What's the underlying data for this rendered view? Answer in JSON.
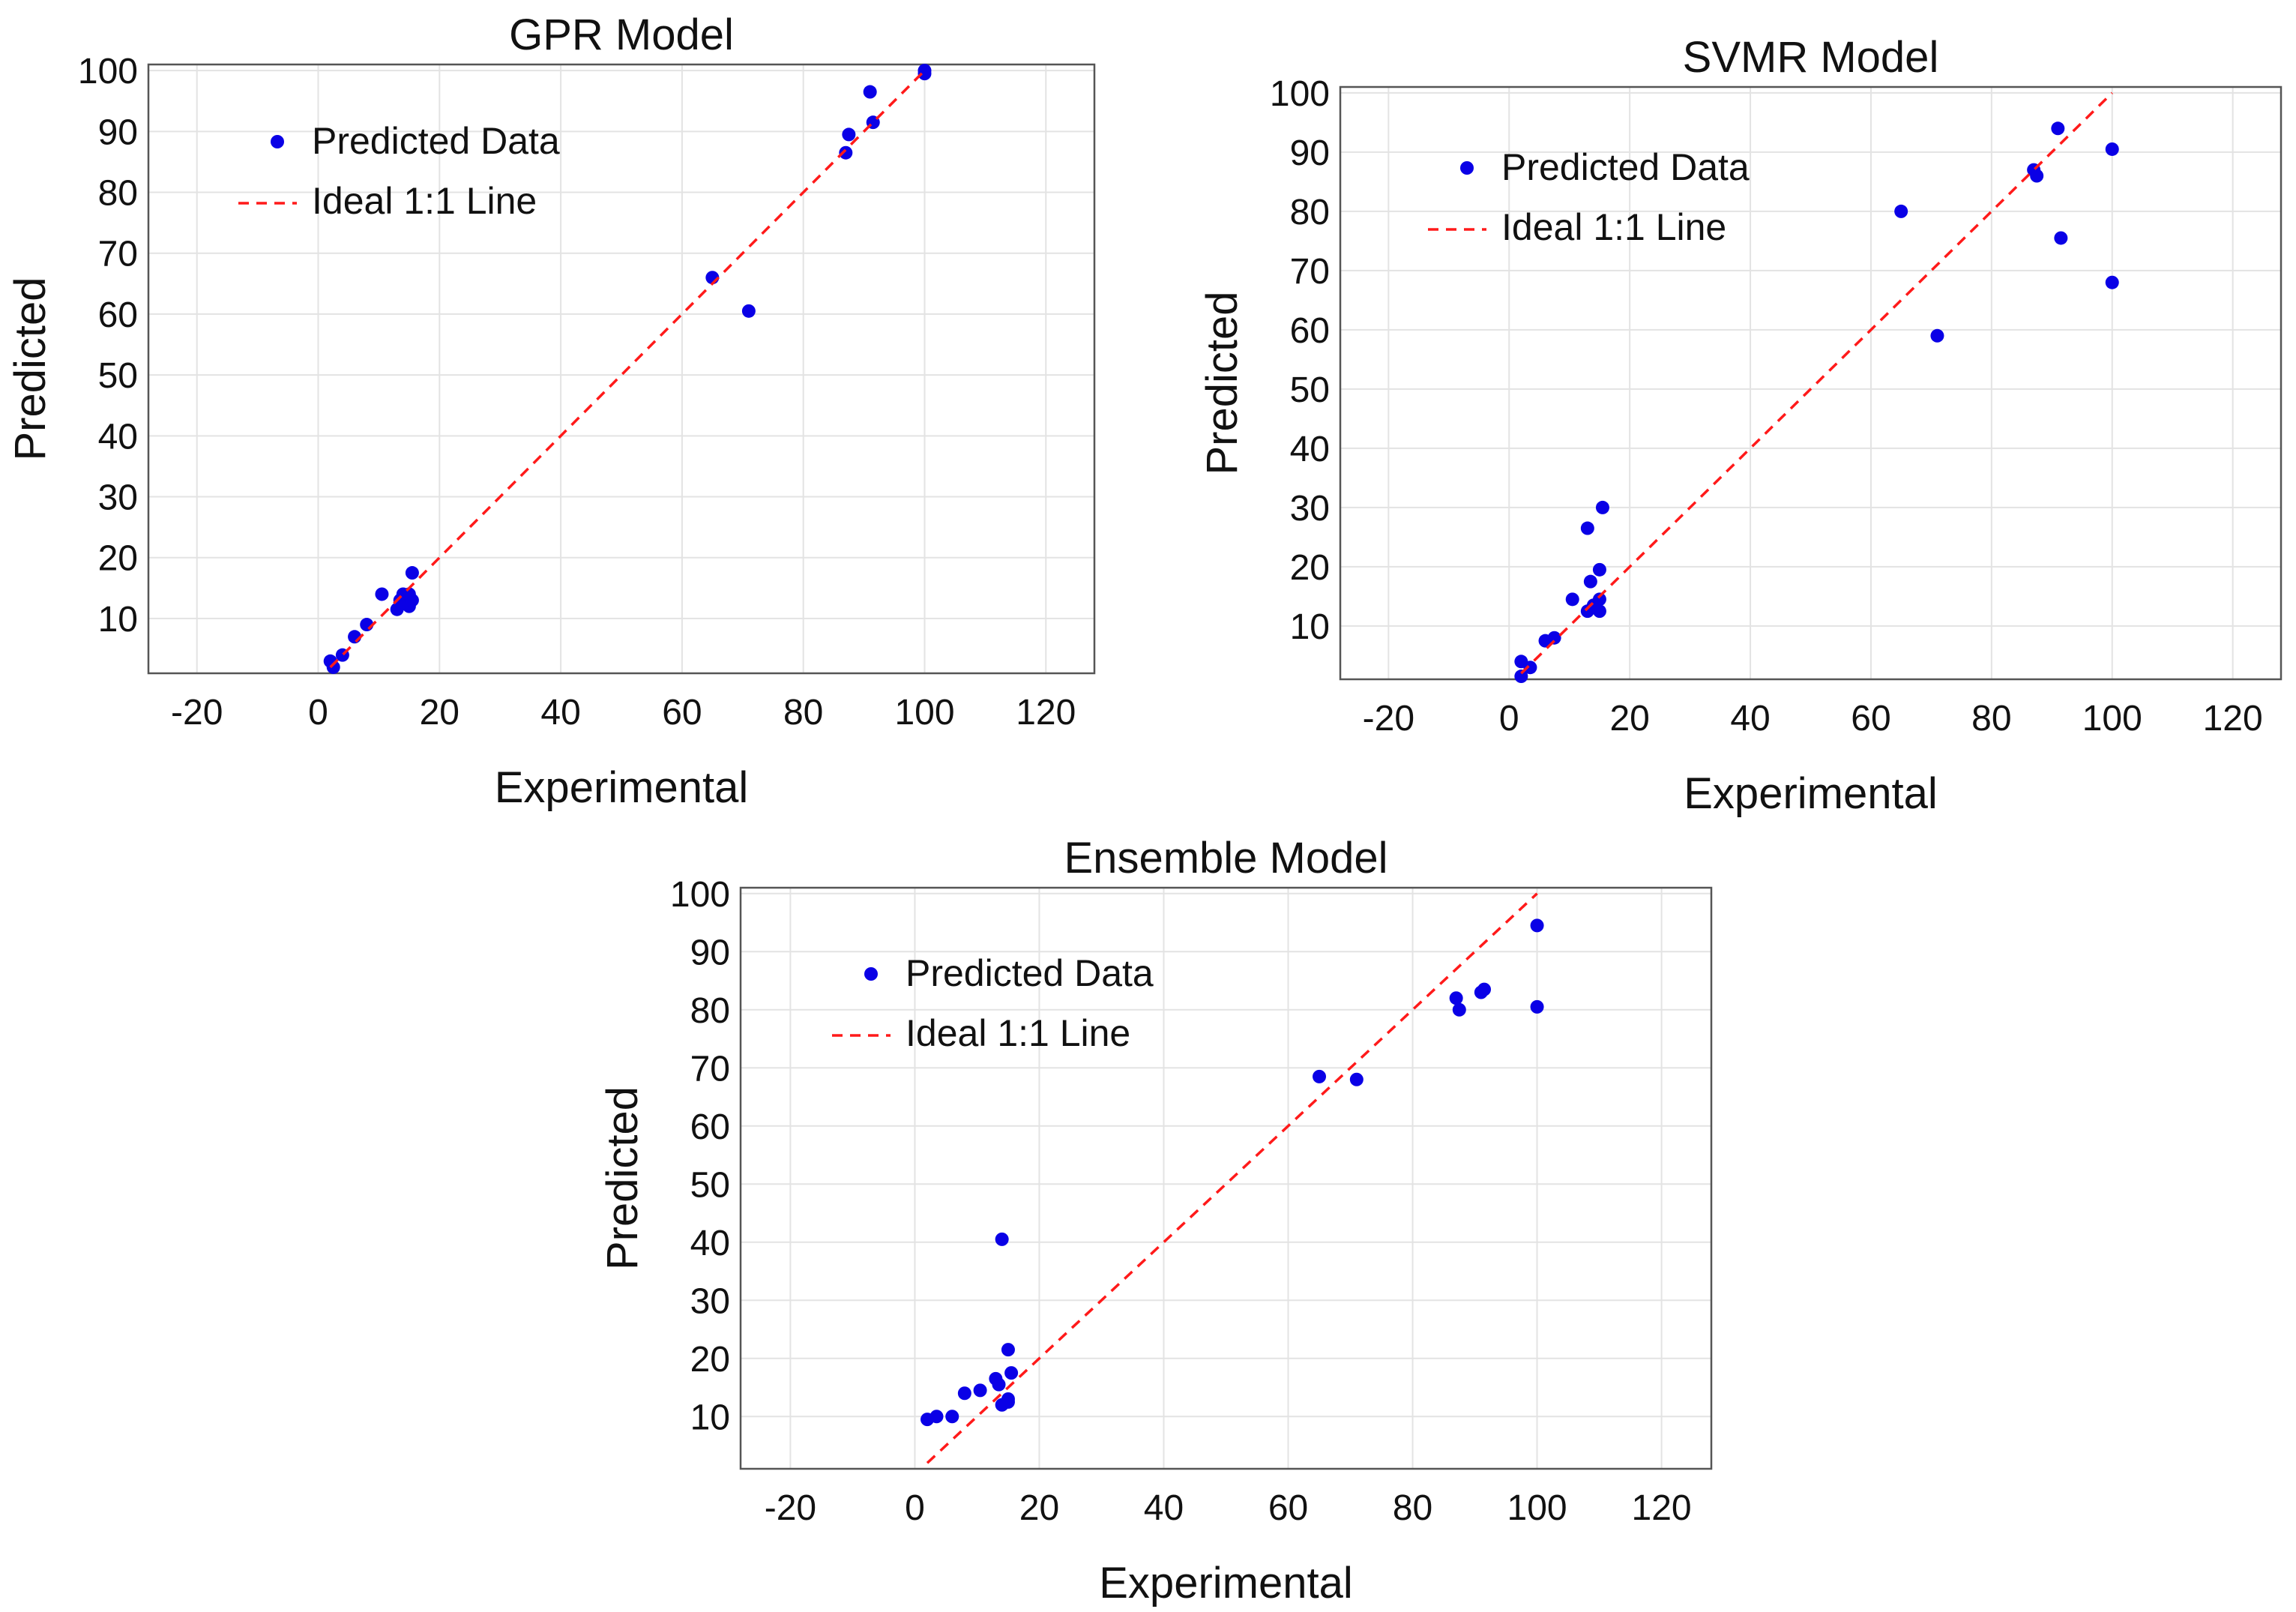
{
  "chart_data": [
    {
      "type": "scatter",
      "title": "GPR Model",
      "xlabel": "Experimental",
      "ylabel": "Predicted",
      "xlim": [
        -28,
        128
      ],
      "ylim": [
        1,
        101
      ],
      "xticks": [
        -20,
        0,
        20,
        40,
        60,
        80,
        100,
        120
      ],
      "yticks": [
        10,
        20,
        30,
        40,
        50,
        60,
        70,
        80,
        90,
        100
      ],
      "grid": true,
      "legend_position": "top-left",
      "colors": {
        "points": "#0a00e6",
        "line": "#ff1a1a"
      },
      "series": [
        {
          "name": "Predicted Data",
          "kind": "points",
          "x": [
            2,
            2.5,
            4,
            6,
            8,
            10.5,
            13,
            13.5,
            14,
            15,
            15,
            15.5,
            15.5,
            65,
            71,
            87,
            87.5,
            91,
            91.5,
            100,
            100
          ],
          "y": [
            3,
            2,
            4,
            7,
            9,
            14,
            11.5,
            13,
            14,
            12,
            14,
            13,
            17.5,
            66,
            60.5,
            86.5,
            89.5,
            96.5,
            91.5,
            99.5,
            100
          ]
        },
        {
          "name": "Ideal 1:1 Line",
          "kind": "line",
          "x": [
            2,
            100
          ],
          "y": [
            2,
            100
          ]
        }
      ]
    },
    {
      "type": "scatter",
      "title": "SVMR Model",
      "xlabel": "Experimental",
      "ylabel": "Predicted",
      "xlim": [
        -28,
        128
      ],
      "ylim": [
        1,
        101
      ],
      "xticks": [
        -20,
        0,
        20,
        40,
        60,
        80,
        100,
        120
      ],
      "yticks": [
        10,
        20,
        30,
        40,
        50,
        60,
        70,
        80,
        90,
        100
      ],
      "grid": true,
      "legend_position": "top-left",
      "colors": {
        "points": "#0a00e6",
        "line": "#ff1a1a"
      },
      "series": [
        {
          "name": "Predicted Data",
          "kind": "points",
          "x": [
            2,
            2,
            3.5,
            6,
            7.5,
            10.5,
            13,
            13,
            13.5,
            14,
            15,
            15,
            15,
            15.5,
            65,
            71,
            87,
            87.5,
            91,
            91.5,
            100,
            100
          ],
          "y": [
            4,
            1.5,
            3,
            7.5,
            8,
            14.5,
            26.5,
            12.5,
            17.5,
            13.5,
            12.5,
            14.5,
            19.5,
            30,
            80,
            59,
            87,
            86,
            94,
            75.5,
            90.5,
            68
          ]
        },
        {
          "name": "Ideal 1:1 Line",
          "kind": "line",
          "x": [
            2,
            100
          ],
          "y": [
            2,
            100
          ]
        }
      ]
    },
    {
      "type": "scatter",
      "title": "Ensemble Model",
      "xlabel": "Experimental",
      "ylabel": "Predicted",
      "xlim": [
        -28,
        128
      ],
      "ylim": [
        1,
        101
      ],
      "xticks": [
        -20,
        0,
        20,
        40,
        60,
        80,
        100,
        120
      ],
      "yticks": [
        10,
        20,
        30,
        40,
        50,
        60,
        70,
        80,
        90,
        100
      ],
      "grid": true,
      "legend_position": "top-left",
      "colors": {
        "points": "#0a00e6",
        "line": "#ff1a1a"
      },
      "series": [
        {
          "name": "Predicted Data",
          "kind": "points",
          "x": [
            2,
            3.5,
            6,
            8,
            10.5,
            13,
            13.5,
            14,
            14,
            15,
            15,
            15,
            15.5,
            65,
            71,
            87,
            87.5,
            91,
            91.5,
            100,
            100
          ],
          "y": [
            9.5,
            10,
            10,
            14,
            14.5,
            16.5,
            15.5,
            40.5,
            12,
            13,
            12.5,
            21.5,
            17.5,
            68.5,
            68,
            82,
            80,
            83,
            83.5,
            94.5,
            80.5
          ]
        },
        {
          "name": "Ideal 1:1 Line",
          "kind": "line",
          "x": [
            2,
            100
          ],
          "y": [
            2,
            100
          ]
        }
      ]
    }
  ]
}
